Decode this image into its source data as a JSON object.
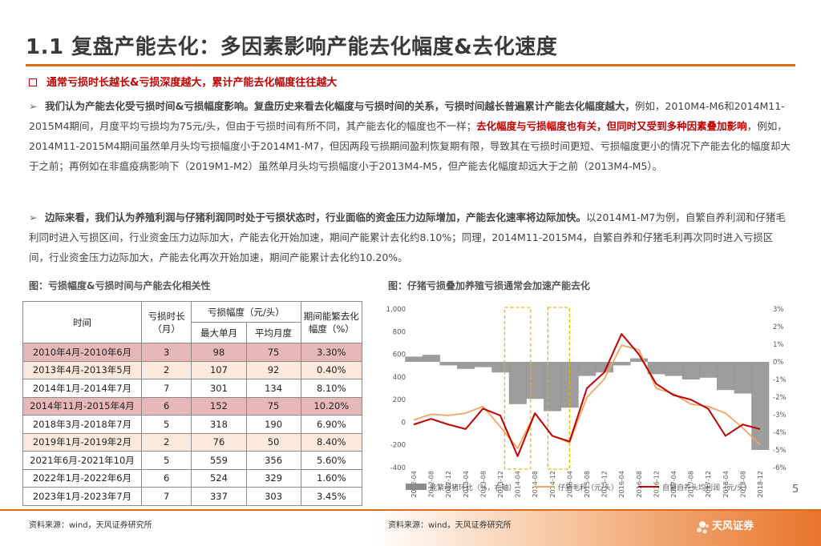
{
  "title": "1.1 复盘产能去化：多因素影响产能去化幅度&去化速度",
  "highlight": "通常亏损时长越长&亏损深度越大，累计产能去化幅度往往越大",
  "para1": {
    "bold": "我们认为产能去化受亏损时间&亏损幅度影响。复盘历史来看去化幅度与亏损时间的关系，亏损时间越长普遍累计产能去化幅度越大，",
    "t1": "例如，2010M4-M6和2014M11-2015M4期间，月度平均亏损均为75元/头，但由于亏损时间有所不同，其产能去化的幅度也不一样；",
    "red": "去化幅度与亏损幅度也有关，但同时又受到多种因素叠加影响",
    "t2": "，例如，2014M11-2015M4期间虽然单月头均亏损幅度小于2014M1-M7，但因两段亏损期间盈利恢复期有限，导致其在亏损时间更短、亏损幅度更小的情况下产能去化的幅度却大于之前；再例如在非瘟疫病影响下（2019M1-M2）虽然单月头均亏损幅度小于2013M4-M5，但产能去化幅度却远大于之前（2013M4-M5）。"
  },
  "para2": {
    "bold": "边际来看，我们认为养殖利润与仔猪利润同时处于亏损状态时，行业面临的资金压力边际增加，产能去化速率将边际加快。",
    "t1": "以2014M1-M7为例，自繁自养利润和仔猪毛利同时进入亏损区间，行业资金压力边际加大，产能去化开始加速，期间产能累计去化约8.10%；同理，2014M11-2015M4，自繁自养和仔猪毛利再次同时进入亏损区间，行业资金压力边际加大，产能去化再次开始加速，期间产能累计去化约10.20%。"
  },
  "table_caption": "图：亏损幅度&亏损时间与产能去化相关性",
  "chart_caption": "图：仔猪亏损叠加养殖亏损通常会加速产能去化",
  "table": {
    "headers": {
      "time": "时间",
      "duration": "亏损时长（月）",
      "loss": "亏损幅度（元/头）",
      "max": "最大单月",
      "avg": "平均月度",
      "cap": "期间能繁去化幅度（%）"
    },
    "rows": [
      {
        "time": "2010年4月-2010年6月",
        "dur": "3",
        "max": "98",
        "avg": "75",
        "cap": "3.30%",
        "style": "pink"
      },
      {
        "time": "2013年4月-2013年5月",
        "dur": "2",
        "max": "107",
        "avg": "92",
        "cap": "0.40%",
        "style": "light"
      },
      {
        "time": "2014年1月-2014年7月",
        "dur": "7",
        "max": "301",
        "avg": "134",
        "cap": "8.10%",
        "style": ""
      },
      {
        "time": "2014年11月-2015年4月",
        "dur": "6",
        "max": "152",
        "avg": "75",
        "cap": "10.20%",
        "style": "pink"
      },
      {
        "time": "2018年3月-2018年7月",
        "dur": "5",
        "max": "318",
        "avg": "190",
        "cap": "6.90%",
        "style": ""
      },
      {
        "time": "2019年1月-2019年2月",
        "dur": "2",
        "max": "76",
        "avg": "50",
        "cap": "8.40%",
        "style": "light"
      },
      {
        "time": "2021年6月-2021年10月",
        "dur": "5",
        "max": "559",
        "avg": "356",
        "cap": "5.60%",
        "style": ""
      },
      {
        "time": "2022年1月-2022年6月",
        "dur": "6",
        "max": "524",
        "avg": "329",
        "cap": "1.60%",
        "style": ""
      },
      {
        "time": "2023年1月-2023年7月",
        "dur": "7",
        "max": "337",
        "avg": "303",
        "cap": "3.45%",
        "style": ""
      }
    ]
  },
  "source_left": "资料来源：wind，天风证券研究所",
  "source_right": "资料来源：wind，天风证券研究所",
  "page_number": "5",
  "logo_text": "天风证券",
  "chart_data": {
    "type": "line",
    "x": [
      "2012-04",
      "2012-08",
      "2012-12",
      "2013-04",
      "2013-08",
      "2013-12",
      "2014-04",
      "2014-08",
      "2014-12",
      "2015-04",
      "2015-08",
      "2015-12",
      "2016-04",
      "2016-08",
      "2016-12",
      "2017-04",
      "2017-08",
      "2017-12",
      "2018-04",
      "2018-08",
      "2018-12"
    ],
    "y_left_ticks": [
      "1,000",
      "800",
      "600",
      "400",
      "200",
      "0",
      "-200",
      "-400"
    ],
    "y_left_range": [
      -400,
      1000
    ],
    "y_right_ticks": [
      "3%",
      "2%",
      "1%",
      "0%",
      "-1%",
      "-2%",
      "-3%",
      "-4%",
      "-5%",
      "-6%"
    ],
    "y_right_range": [
      -6,
      3
    ],
    "series": [
      {
        "name": "能繁母猪环比（%，右轴）",
        "axis": "right",
        "kind": "area",
        "color": "#8c8c8c",
        "values": [
          0.3,
          0.4,
          -0.2,
          -0.4,
          -0.3,
          -0.6,
          -2.4,
          -2.1,
          -2.8,
          -2.6,
          -0.8,
          -0.6,
          -0.2,
          0.2,
          -0.7,
          -0.8,
          -1.0,
          -0.9,
          -1.6,
          -1.8,
          -5.0
        ]
      },
      {
        "name": "仔猪毛利（元/头）",
        "axis": "left",
        "kind": "line",
        "color": "#f4a460",
        "values": [
          20,
          70,
          60,
          80,
          140,
          -40,
          -230,
          80,
          -120,
          -180,
          220,
          380,
          680,
          640,
          300,
          250,
          160,
          140,
          80,
          -50,
          -200
        ]
      },
      {
        "name": "自繁自养头均利润（元/头）",
        "axis": "left",
        "kind": "line",
        "color": "#c00000",
        "values": [
          -20,
          30,
          -20,
          -60,
          120,
          60,
          -300,
          80,
          -120,
          -170,
          300,
          440,
          780,
          600,
          340,
          240,
          200,
          120,
          -120,
          -20,
          -60
        ]
      }
    ],
    "highlight_periods": [
      [
        "2014-01",
        "2014-07"
      ],
      [
        "2014-11",
        "2015-04"
      ]
    ],
    "legend_position": "bottom"
  }
}
